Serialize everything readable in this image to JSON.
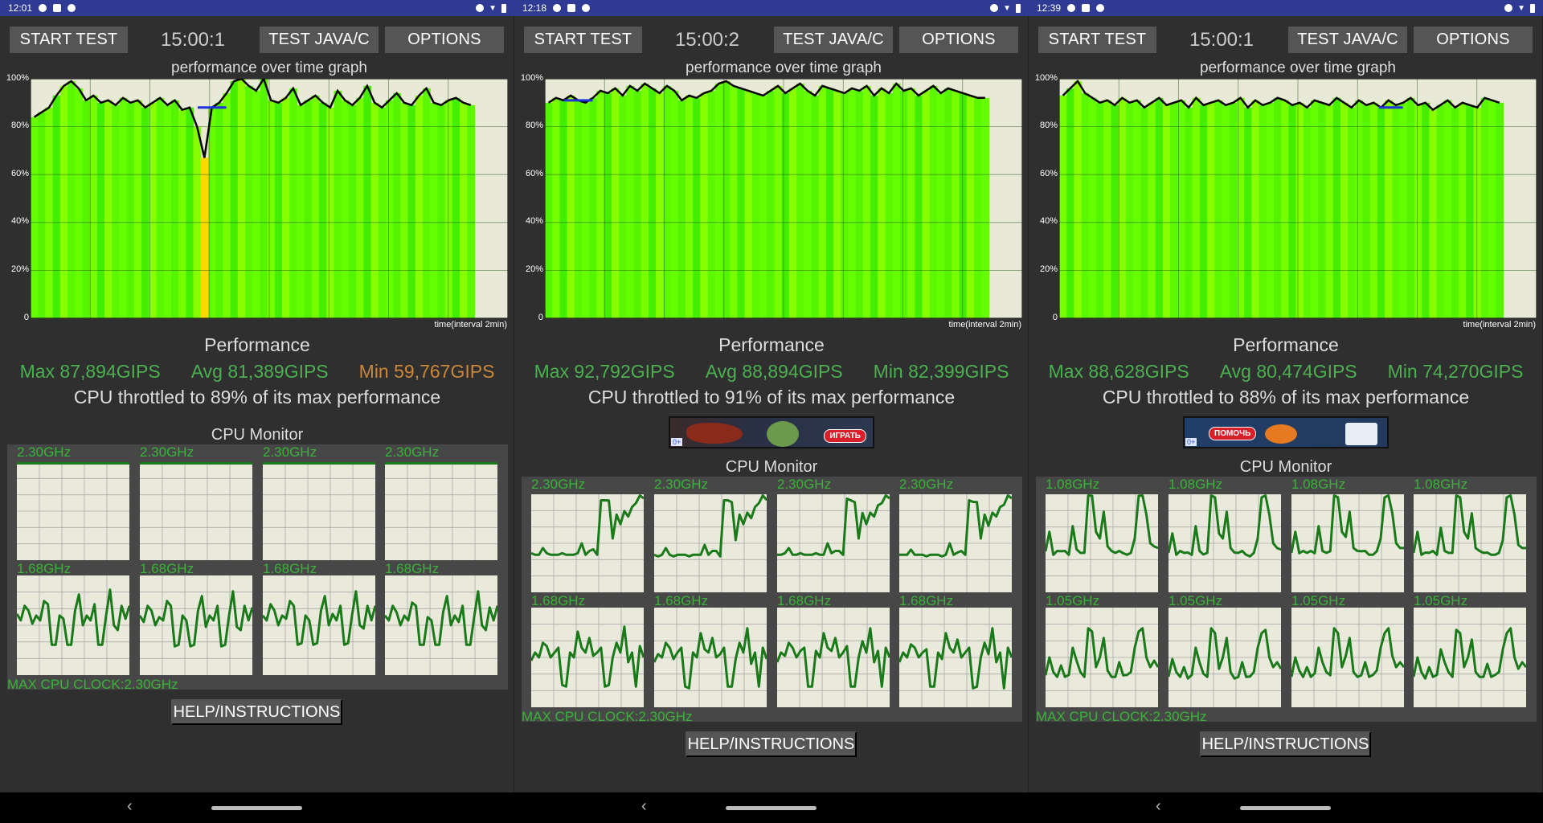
{
  "colors": {
    "status_bar": "#2e3a94",
    "background": "#2f2f2f",
    "button": "#555555",
    "stat_green": "#4caf50",
    "stat_orange": "#c8873a",
    "cpu_green": "#39b339",
    "cpu_line": "#1a7a1a",
    "cell_bg": "#e9e9dc",
    "graph_bg": "#e9e9d8",
    "marker": "#2233dd"
  },
  "panels": [
    {
      "status": {
        "time": "12:01",
        "icons": [
          "shield-icon",
          "image-icon",
          "fire-icon"
        ],
        "right_icons": [
          "vibrate-icon",
          "data-icon",
          "wifi-icon",
          "battery-icon"
        ]
      },
      "buttons": {
        "start": "START TEST",
        "java": "TEST JAVA/C",
        "options": "OPTIONS",
        "help": "HELP/INSTRUCTIONS"
      },
      "timer": "15:00:1",
      "graph": {
        "title": "performance over time graph",
        "y_ticks": [
          "100%",
          "80%",
          "60%",
          "40%",
          "20%",
          "0"
        ],
        "x_label": "time(interval 2min)",
        "coverage": 0.93,
        "values": [
          84,
          86,
          88,
          93,
          97,
          99,
          96,
          91,
          93,
          90,
          91,
          89,
          92,
          90,
          91,
          88,
          90,
          92,
          89,
          91,
          87,
          88,
          80,
          67,
          88,
          90,
          94,
          99,
          100,
          97,
          95,
          100,
          91,
          90,
          92,
          96,
          89,
          91,
          93,
          90,
          88,
          95,
          91,
          89,
          92,
          97,
          90,
          88,
          91,
          94,
          90,
          89,
          93,
          96,
          90,
          89,
          91,
          92,
          90,
          89
        ],
        "marker": {
          "from": 0.35,
          "to": 0.41,
          "value": 88
        }
      },
      "performance": {
        "title": "Performance",
        "max": "Max 87,894GIPS",
        "avg": "Avg 81,389GIPS",
        "min": "Min 59,767GIPS",
        "min_color": "#c8873a",
        "throttle": "CPU throttled to 89% of its max performance"
      },
      "ad": null,
      "cpu": {
        "title": "CPU Monitor",
        "max_clock": "MAX CPU CLOCK:2.30GHz",
        "rows": [
          {
            "freqs": [
              "2.30GHz",
              "2.30GHz",
              "2.30GHz",
              "2.30GHz"
            ],
            "series": [
              1,
              1,
              1,
              1,
              1,
              1
            ]
          },
          {
            "freqs": [
              "1.68GHz",
              "1.68GHz",
              "1.68GHz",
              "1.68GHz"
            ],
            "series": [
              0.6,
              0.55,
              0.7,
              0.65,
              0.5,
              0.6,
              0.55,
              0.75,
              0.7,
              0.3,
              0.3,
              0.6,
              0.55,
              0.3,
              0.3,
              0.65,
              0.8,
              0.5,
              0.6,
              0.55,
              0.7,
              0.3,
              0.3,
              0.6,
              0.85,
              0.5,
              0.45,
              0.7,
              0.55,
              0.7
            ]
          }
        ]
      }
    },
    {
      "status": {
        "time": "12:18",
        "icons": [
          "shield-icon",
          "image-icon",
          "fire-icon"
        ],
        "right_icons": [
          "vibrate-icon",
          "data-icon",
          "wifi-icon",
          "battery-icon"
        ]
      },
      "buttons": {
        "start": "START TEST",
        "java": "TEST JAVA/C",
        "options": "OPTIONS",
        "help": "HELP/INSTRUCTIONS"
      },
      "timer": "15:00:2",
      "graph": {
        "title": "performance over time graph",
        "y_ticks": [
          "100%",
          "80%",
          "60%",
          "40%",
          "20%",
          "0"
        ],
        "x_label": "time(interval 2min)",
        "coverage": 0.93,
        "values": [
          90,
          92,
          91,
          93,
          91,
          90,
          92,
          95,
          94,
          96,
          93,
          97,
          95,
          98,
          96,
          94,
          97,
          95,
          91,
          93,
          92,
          94,
          95,
          98,
          99,
          97,
          96,
          95,
          94,
          93,
          95,
          97,
          94,
          96,
          98,
          95,
          93,
          97,
          96,
          95,
          94,
          96,
          95,
          97,
          93,
          96,
          94,
          98,
          95,
          96,
          93,
          95,
          97,
          94,
          96,
          95,
          94,
          93,
          92,
          92
        ],
        "marker": {
          "from": 0.04,
          "to": 0.1,
          "value": 91
        }
      },
      "performance": {
        "title": "Performance",
        "max": "Max 92,792GIPS",
        "avg": "Avg 88,894GIPS",
        "min": "Min 82,399GIPS",
        "min_color": "#4caf50",
        "throttle": "CPU throttled to 91% of its max performance"
      },
      "ad": {
        "kind": "game",
        "button": "ИГРАТЬ",
        "age": "0+"
      },
      "cpu": {
        "title": "CPU Monitor",
        "max_clock": "MAX CPU CLOCK:2.30GHz",
        "rows": [
          {
            "freqs": [
              "2.30GHz",
              "2.30GHz",
              "2.30GHz",
              "2.30GHz"
            ],
            "series": [
              0.38,
              0.38,
              0.38,
              0.45,
              0.38,
              0.38,
              0.38,
              0.38,
              0.38,
              0.38,
              0.38,
              0.38,
              0.38,
              0.5,
              0.38,
              0.42,
              0.42,
              0.38,
              0.95,
              0.95,
              0.93,
              0.55,
              0.8,
              0.7,
              0.82,
              0.78,
              0.88,
              0.92,
              1.0,
              0.97
            ]
          },
          {
            "freqs": [
              "1.68GHz",
              "1.68GHz",
              "1.68GHz",
              "1.68GHz"
            ],
            "series": [
              0.45,
              0.55,
              0.5,
              0.65,
              0.6,
              0.5,
              0.55,
              0.6,
              0.2,
              0.2,
              0.55,
              0.5,
              0.75,
              0.6,
              0.55,
              0.7,
              0.5,
              0.55,
              0.6,
              0.2,
              0.2,
              0.5,
              0.65,
              0.55,
              0.8,
              0.45,
              0.55,
              0.2,
              0.6,
              0.5
            ]
          }
        ]
      }
    },
    {
      "status": {
        "time": "12:39",
        "icons": [
          "shield-icon",
          "image-icon",
          "fire-icon"
        ],
        "right_icons": [
          "vibrate-icon",
          "data-icon",
          "wifi-icon",
          "battery-icon"
        ]
      },
      "buttons": {
        "start": "START TEST",
        "java": "TEST JAVA/C",
        "options": "OPTIONS",
        "help": "HELP/INSTRUCTIONS"
      },
      "timer": "15:00:1",
      "graph": {
        "title": "performance over time graph",
        "y_ticks": [
          "100%",
          "80%",
          "60%",
          "40%",
          "20%",
          "0"
        ],
        "x_label": "time(interval 2min)",
        "coverage": 0.93,
        "values": [
          93,
          96,
          99,
          94,
          92,
          90,
          91,
          89,
          92,
          90,
          91,
          88,
          90,
          92,
          89,
          90,
          91,
          88,
          92,
          89,
          90,
          91,
          89,
          90,
          92,
          88,
          91,
          89,
          90,
          92,
          91,
          89,
          90,
          88,
          91,
          90,
          89,
          92,
          90,
          88,
          91,
          89,
          90,
          88,
          91,
          89,
          90,
          92,
          89,
          90,
          87,
          89,
          91,
          88,
          90,
          89,
          88,
          92,
          91,
          90
        ],
        "marker": {
          "from": 0.67,
          "to": 0.72,
          "value": 88
        }
      },
      "performance": {
        "title": "Performance",
        "max": "Max 88,628GIPS",
        "avg": "Avg 80,474GIPS",
        "min": "Min 74,270GIPS",
        "min_color": "#4caf50",
        "throttle": "CPU throttled to 88% of its max performance"
      },
      "ad": {
        "kind": "fish",
        "button": "ПОМОЧЬ",
        "age": "0+"
      },
      "cpu": {
        "title": "CPU Monitor",
        "max_clock": "MAX CPU CLOCK:2.30GHz",
        "rows": [
          {
            "freqs": [
              "1.08GHz",
              "1.08GHz",
              "1.08GHz",
              "1.08GHz"
            ],
            "series": [
              0.4,
              0.62,
              0.38,
              0.42,
              0.4,
              0.42,
              0.38,
              0.68,
              0.42,
              0.4,
              0.4,
              1.0,
              0.98,
              0.62,
              0.55,
              0.83,
              0.45,
              0.42,
              0.4,
              0.42,
              0.38,
              0.38,
              0.4,
              0.55,
              0.98,
              1.0,
              0.8,
              0.5,
              0.45,
              0.45
            ]
          },
          {
            "freqs": [
              "1.05GHz",
              "1.05GHz",
              "1.05GHz",
              "1.05GHz"
            ],
            "series": [
              0.3,
              0.5,
              0.35,
              0.3,
              0.4,
              0.3,
              0.32,
              0.6,
              0.45,
              0.35,
              0.3,
              0.8,
              0.75,
              0.4,
              0.5,
              0.7,
              0.35,
              0.3,
              0.3,
              0.45,
              0.3,
              0.32,
              0.35,
              0.6,
              0.75,
              0.8,
              0.5,
              0.4,
              0.45,
              0.4
            ]
          }
        ]
      }
    }
  ]
}
